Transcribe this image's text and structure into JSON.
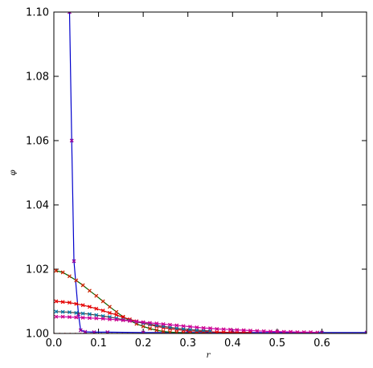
{
  "chart_data": {
    "type": "line",
    "title": "",
    "xlabel": "r",
    "ylabel": "φ",
    "xlim": [
      0.0,
      0.7
    ],
    "ylim": [
      1.0,
      1.1
    ],
    "xticks": [
      "0.0",
      "0.1",
      "0.2",
      "0.3",
      "0.4",
      "0.5",
      "0.6"
    ],
    "yticks": [
      "1.00",
      "1.02",
      "1.04",
      "1.06",
      "1.08",
      "1.10"
    ],
    "grid": false,
    "legend": "none",
    "series": [
      {
        "color": "#0000cc",
        "marker_color": "#990099",
        "x": [
          0.035,
          0.04,
          0.045,
          0.055,
          0.06,
          0.07,
          0.09,
          0.12,
          0.2,
          0.3,
          0.4,
          0.5,
          0.6,
          0.7
        ],
        "y": [
          1.1,
          1.06,
          1.0225,
          1.006,
          1.001,
          1.0005,
          1.0004,
          1.0004,
          1.0003,
          1.0003,
          1.0003,
          1.0003,
          1.0003,
          1.0003
        ]
      },
      {
        "color": "#006600",
        "marker_color": "#cc2200",
        "x": [
          0.005,
          0.02,
          0.035,
          0.05,
          0.065,
          0.08,
          0.095,
          0.11,
          0.125,
          0.14,
          0.155,
          0.17,
          0.185,
          0.2,
          0.215,
          0.23,
          0.245,
          0.26,
          0.275,
          0.29,
          0.305,
          0.32,
          0.335,
          0.35
        ],
        "y": [
          1.0195,
          1.019,
          1.0178,
          1.0165,
          1.015,
          1.0133,
          1.0117,
          1.01,
          1.0083,
          1.0067,
          1.0052,
          1.004,
          1.003,
          1.0022,
          1.0015,
          1.001,
          1.0006,
          1.0004,
          1.0003,
          1.0002,
          1.0001,
          1.0001,
          1.0,
          1.0
        ]
      },
      {
        "color": "#cc0000",
        "marker_color": "#ee0000",
        "x": [
          0.005,
          0.02,
          0.035,
          0.05,
          0.065,
          0.08,
          0.095,
          0.11,
          0.125,
          0.14,
          0.155,
          0.17,
          0.185,
          0.2,
          0.215,
          0.23,
          0.245,
          0.26,
          0.275,
          0.29,
          0.305,
          0.32,
          0.335,
          0.35,
          0.365,
          0.38,
          0.395,
          0.41,
          0.425,
          0.44
        ],
        "y": [
          1.01,
          1.0098,
          1.0096,
          1.0092,
          1.0088,
          1.0083,
          1.0077,
          1.0071,
          1.0064,
          1.0058,
          1.005,
          1.0044,
          1.0038,
          1.0032,
          1.0027,
          1.0022,
          1.0018,
          1.0015,
          1.0012,
          1.001,
          1.0008,
          1.0007,
          1.0006,
          1.0005,
          1.0004,
          1.0004,
          1.0003,
          1.0003,
          1.0003,
          1.0003
        ]
      },
      {
        "color": "#444444",
        "marker_color": "#0077aa",
        "x": [
          0.005,
          0.02,
          0.035,
          0.05,
          0.065,
          0.08,
          0.095,
          0.11,
          0.125,
          0.14,
          0.155,
          0.17,
          0.185,
          0.2,
          0.215,
          0.23,
          0.245,
          0.26,
          0.275,
          0.29,
          0.305,
          0.32,
          0.335,
          0.35
        ],
        "y": [
          1.0068,
          1.0067,
          1.0066,
          1.0064,
          1.0062,
          1.006,
          1.0057,
          1.0054,
          1.0051,
          1.0047,
          1.0043,
          1.004,
          1.0036,
          1.0032,
          1.0029,
          1.0025,
          1.0022,
          1.0019,
          1.0016,
          1.0014,
          1.0012,
          1.001,
          1.0009,
          1.0008
        ]
      },
      {
        "color": "#cc00aa",
        "marker_color": "#cc0088",
        "x": [
          0.005,
          0.02,
          0.035,
          0.05,
          0.065,
          0.08,
          0.095,
          0.11,
          0.125,
          0.14,
          0.155,
          0.17,
          0.185,
          0.2,
          0.215,
          0.23,
          0.245,
          0.26,
          0.275,
          0.29,
          0.305,
          0.32,
          0.335,
          0.35,
          0.365,
          0.38,
          0.395,
          0.41,
          0.425,
          0.44,
          0.455,
          0.47,
          0.485,
          0.5,
          0.515,
          0.53,
          0.545,
          0.56,
          0.575,
          0.59
        ],
        "y": [
          1.0052,
          1.0052,
          1.0051,
          1.005,
          1.0049,
          1.0048,
          1.0047,
          1.0046,
          1.0044,
          1.0043,
          1.0041,
          1.0039,
          1.0037,
          1.0035,
          1.0033,
          1.0031,
          1.0029,
          1.0027,
          1.0025,
          1.0023,
          1.0021,
          1.0019,
          1.0017,
          1.0016,
          1.0014,
          1.0013,
          1.0012,
          1.0011,
          1.001,
          1.0009,
          1.0008,
          1.0007,
          1.0006,
          1.0006,
          1.0005,
          1.0005,
          1.0004,
          1.0004,
          1.0004,
          1.0003
        ]
      },
      {
        "color": "#cc0000",
        "marker_color": "#dd2222",
        "style": "dotted",
        "x": [
          0.0,
          0.7
        ],
        "y": [
          1.0,
          1.0
        ]
      }
    ]
  }
}
